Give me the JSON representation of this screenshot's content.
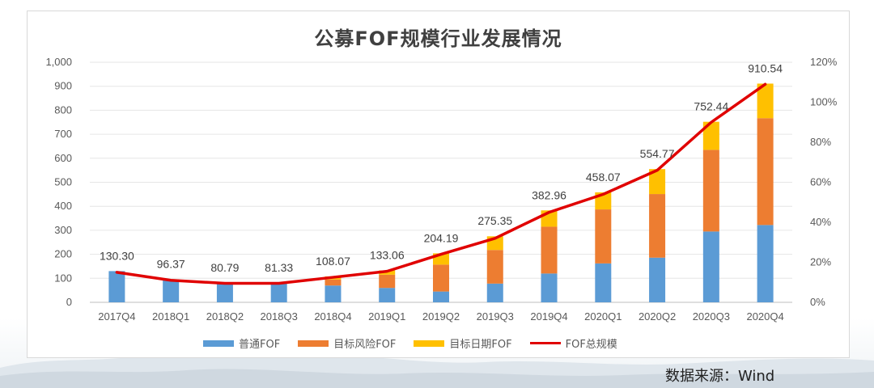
{
  "chart_data": {
    "type": "bar",
    "title": "公募FOF规模行业发展情况",
    "categories": [
      "2017Q4",
      "2018Q1",
      "2018Q2",
      "2018Q3",
      "2018Q4",
      "2019Q1",
      "2019Q2",
      "2019Q3",
      "2019Q4",
      "2020Q1",
      "2020Q2",
      "2020Q3",
      "2020Q4"
    ],
    "stacked": true,
    "series": [
      {
        "name": "普通FOF",
        "type": "bar",
        "color": "#5b9bd5",
        "values": [
          130,
          95,
          80,
          80,
          70,
          60,
          45,
          78,
          120,
          162,
          186,
          295,
          322
        ]
      },
      {
        "name": "目标风险FOF",
        "type": "bar",
        "color": "#ed7d31",
        "values": [
          0,
          0,
          0,
          0,
          25,
          55,
          112,
          140,
          195,
          225,
          265,
          340,
          445
        ]
      },
      {
        "name": "目标日期FOF",
        "type": "bar",
        "color": "#ffc000",
        "values": [
          0,
          1,
          1,
          1,
          13,
          18,
          47,
          57,
          68,
          71,
          104,
          117,
          144
        ]
      },
      {
        "name": "FOF总规模",
        "type": "line",
        "color": "#e00000",
        "axis": "right",
        "values": [
          15,
          11,
          9.5,
          9.5,
          12.5,
          15.5,
          24,
          32,
          45,
          54,
          66,
          90,
          109
        ]
      }
    ],
    "total_labels": [
      "130.30",
      "96.37",
      "80.79",
      "81.33",
      "108.07",
      "133.06",
      "204.19",
      "275.35",
      "382.96",
      "458.07",
      "554.77",
      "752.44",
      "910.54"
    ],
    "y_left": {
      "min": 0,
      "max": 1000,
      "ticks": [
        "0",
        "100",
        "200",
        "300",
        "400",
        "500",
        "600",
        "700",
        "800",
        "900",
        "1,000"
      ]
    },
    "y_right": {
      "min": 0,
      "max": 120,
      "ticks": [
        "0%",
        "20%",
        "40%",
        "60%",
        "80%",
        "100%",
        "120%"
      ]
    },
    "legend_position": "bottom"
  },
  "source_note": "数据来源：Wind"
}
